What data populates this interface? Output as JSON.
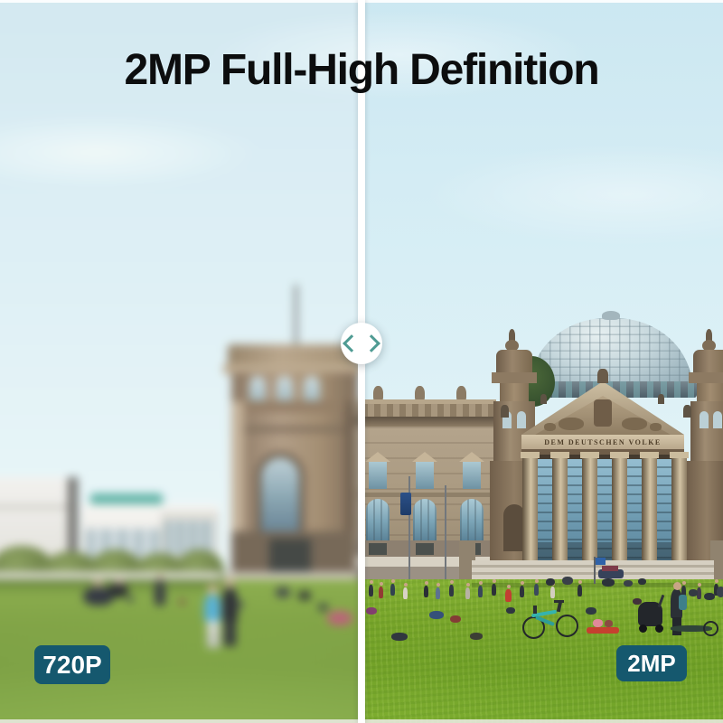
{
  "title": "2MP Full-High Definition",
  "comparison": {
    "left_label": "720P",
    "right_label": "2MP",
    "divider_color": "#ffffff",
    "handle": {
      "icon": "compare-chevrons-icon",
      "chevron_color": "#4f9b93",
      "bg": "#ffffff"
    },
    "badge": {
      "bg": "#15586e",
      "text_color": "#ffffff"
    }
  },
  "scene": {
    "description": "Reichstag building in Berlin with glass dome and lawn with people; left half blurred low-resolution, right half sharp",
    "inscription": "DEM DEUTSCHEN VOLKE",
    "colors": {
      "sky": "#d6eef5",
      "grass": "#7aa82c",
      "stone": "#a6967e",
      "dome_glass": "#c2d5db"
    }
  }
}
